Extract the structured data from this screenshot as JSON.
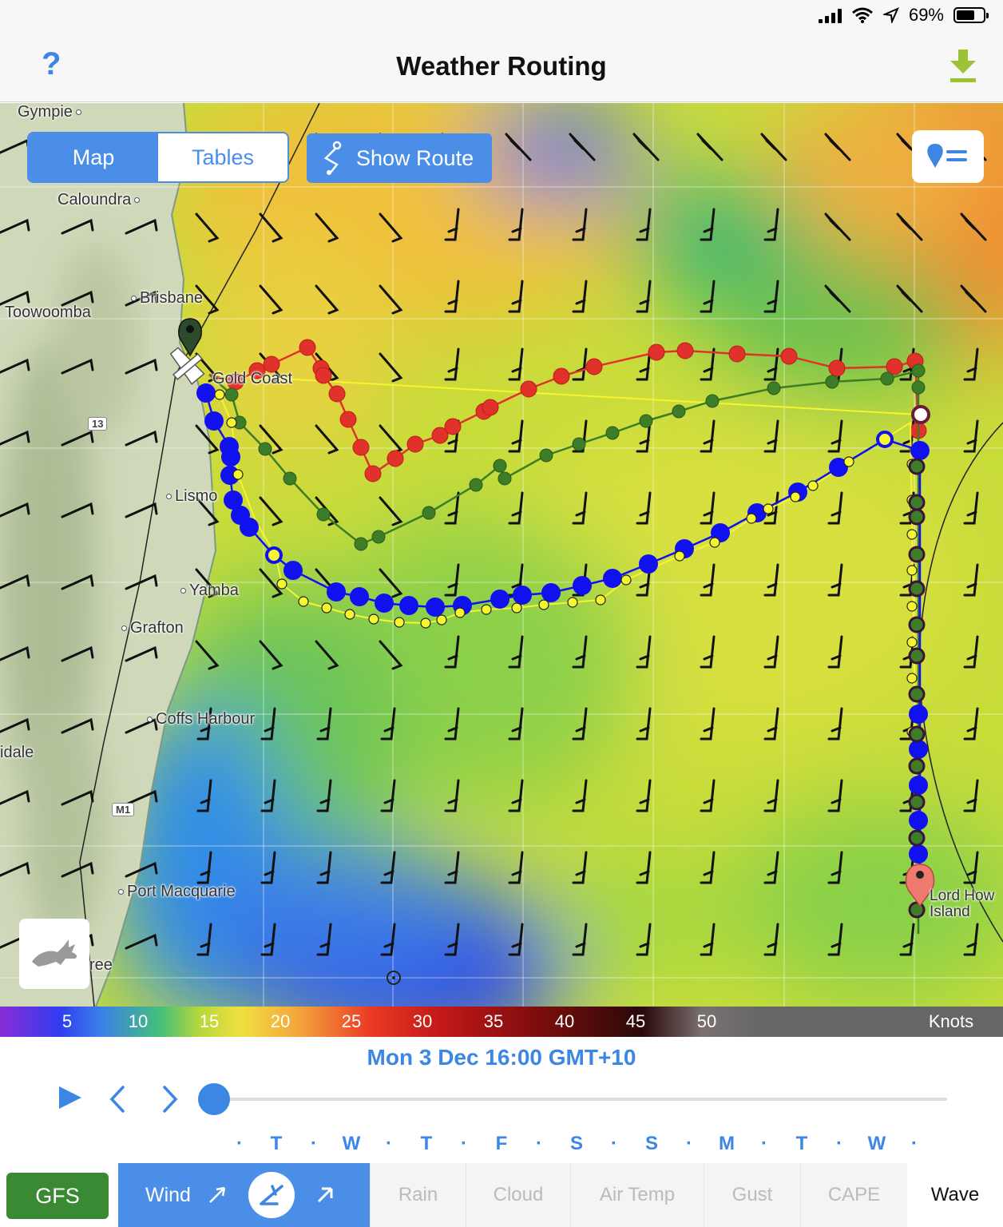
{
  "status_bar": {
    "battery": "69%"
  },
  "nav": {
    "title": "Weather Routing",
    "help": "?"
  },
  "map_controls": {
    "map_tab": "Map",
    "tables_tab": "Tables",
    "show_route": "Show Route"
  },
  "places": {
    "gympie": "Gympie",
    "caloundra": "Caloundra",
    "brisbane": "Brisbane",
    "toowoomba": "Toowoomba",
    "gold_coast": "Gold Coast",
    "lismore": "Lismo",
    "yamba": "Yamba",
    "grafton": "Grafton",
    "coffs": "Coffs Harbour",
    "armidale": "idale",
    "port_macquarie": "Port Macquarie",
    "taree": "ree",
    "lord_howe_1": "Lord How",
    "lord_howe_2": "Island",
    "road_13": "13",
    "road_m1": "M1"
  },
  "legend": {
    "ticks": [
      "5",
      "10",
      "15",
      "20",
      "25",
      "30",
      "35",
      "40",
      "45",
      "50"
    ],
    "unit": "Knots"
  },
  "timeline": {
    "current_time": "Mon 3 Dec 16:00 GMT+10",
    "days": [
      "T",
      "W",
      "T",
      "F",
      "S",
      "S",
      "M",
      "T",
      "W"
    ],
    "position_fraction": 0.0
  },
  "tabs": {
    "model": "GFS",
    "wind": "Wind",
    "rain": "Rain",
    "cloud": "Cloud",
    "air_temp": "Air Temp",
    "gust": "Gust",
    "cape": "CAPE",
    "wave": "Wave"
  },
  "colors": {
    "accent": "#4a8ee8",
    "route_red": "#e0322a",
    "route_green": "#3d7d28",
    "route_blue": "#1010f0",
    "route_yellow": "#f5f530",
    "gfs": "#3a8a34"
  },
  "icons": [
    "help-icon",
    "download-icon",
    "route-icon",
    "layers-icon",
    "rabbit-icon",
    "play-icon",
    "chevron-left-icon",
    "chevron-right-icon",
    "wind-direction-icon",
    "wind-barb-icon",
    "wind-arrow-icon",
    "start-pin-icon",
    "destination-pin-icon",
    "boat-icon"
  ]
}
